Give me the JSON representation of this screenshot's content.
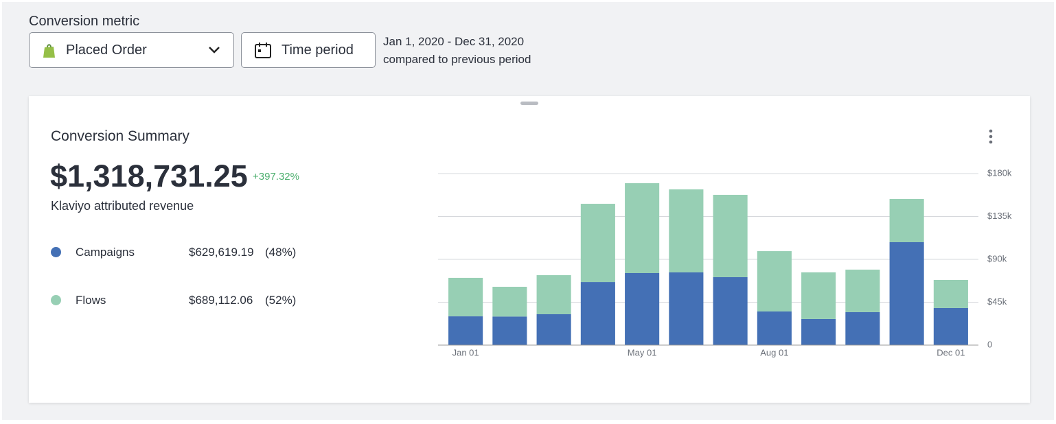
{
  "header": {
    "metric_label": "Conversion metric",
    "metric_value": "Placed Order",
    "period_button": "Time period",
    "date_range": "Jan 1, 2020 - Dec 31, 2020",
    "comparison": "compared to previous period"
  },
  "summary": {
    "title": "Conversion Summary",
    "total": "$1,318,731.25",
    "change": "+397.32%",
    "subtitle": "Klaviyo attributed revenue",
    "breakdown": [
      {
        "amount": "$629,619.19",
        "share": "(48%)"
      },
      {
        "amount": "$689,112.06",
        "share": "(52%)"
      }
    ]
  },
  "chart_data": {
    "type": "stacked-bar",
    "categories": [
      "Jan 01",
      null,
      null,
      null,
      "May 01",
      null,
      null,
      "Aug 01",
      null,
      null,
      null,
      "Dec 01"
    ],
    "series": [
      {
        "name": "Campaigns",
        "color": "#4470b5",
        "values": [
          30200,
          30000,
          32400,
          66200,
          75600,
          76300,
          71300,
          35300,
          27400,
          34600,
          108000,
          38900
        ]
      },
      {
        "name": "Flows",
        "color": "#97cfb4",
        "values": [
          40400,
          31200,
          41000,
          82100,
          94300,
          87100,
          86400,
          63300,
          48900,
          44600,
          45400,
          29500
        ]
      }
    ],
    "ylim": [
      0,
      180000
    ],
    "yticks": [
      0,
      {
        "value": 45000,
        "label": "$45k"
      },
      {
        "value": 90000,
        "label": "$90k"
      },
      {
        "value": 135000,
        "label": "$135k"
      },
      {
        "value": 180000,
        "label": "$180k"
      }
    ],
    "grid": true
  }
}
